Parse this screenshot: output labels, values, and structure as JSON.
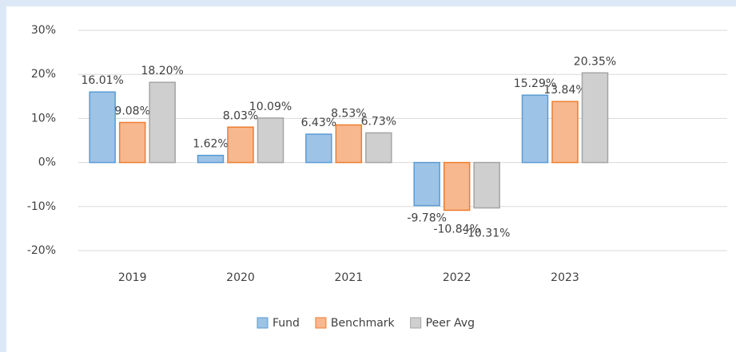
{
  "chart_data": {
    "type": "bar",
    "categories": [
      "2019",
      "2020",
      "2021",
      "2022",
      "2023",
      null
    ],
    "series": [
      {
        "name": "Fund",
        "color": "#9dc3e6",
        "border_color": "#5b9bd5",
        "values": [
          16.01,
          1.62,
          6.43,
          -9.78,
          15.29,
          null
        ],
        "value_labels": [
          "16.01%",
          "1.62%",
          "6.43%",
          "-9.78%",
          "15.29%",
          null
        ]
      },
      {
        "name": "Benchmark",
        "color": "#f8b88f",
        "border_color": "#ed7d31",
        "values": [
          9.08,
          8.03,
          8.53,
          -10.84,
          13.84,
          null
        ],
        "value_labels": [
          "9.08%",
          "8.03%",
          "8.53%",
          "-10.84%",
          "13.84%",
          null
        ]
      },
      {
        "name": "Peer Avg",
        "color": "#cfcfcf",
        "border_color": "#a5a5a5",
        "values": [
          18.2,
          10.09,
          6.73,
          -10.31,
          20.35,
          null
        ],
        "value_labels": [
          "18.20%",
          "10.09%",
          "6.73%",
          "-10.31%",
          "20.35%",
          null
        ]
      }
    ],
    "ylim": [
      -20,
      30
    ],
    "yticks": [
      {
        "value": -20,
        "label": "-20%"
      },
      {
        "value": -10,
        "label": "-10%"
      },
      {
        "value": 0,
        "label": "0%"
      },
      {
        "value": 10,
        "label": "10%"
      },
      {
        "value": 20,
        "label": "20%"
      },
      {
        "value": 30,
        "label": "30%"
      }
    ],
    "grid": true,
    "legend": "bottom"
  }
}
